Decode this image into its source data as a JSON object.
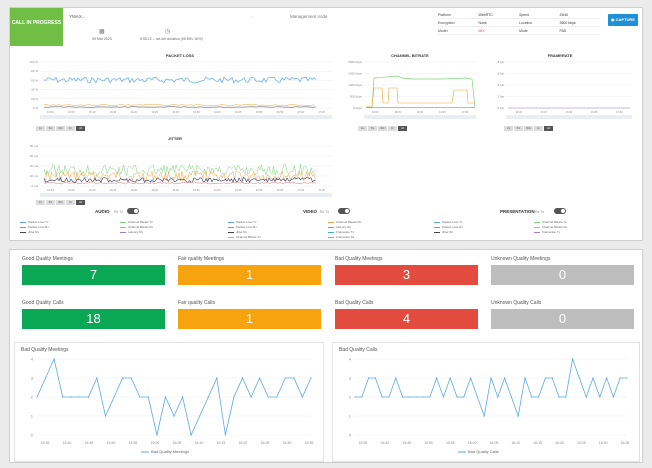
{
  "call": {
    "status": "CALL IN PROGRESS",
    "name": "YMAX...",
    "room_label": "Management node",
    "date": "05 Mar 2024",
    "duration_text": "5:55:22 – not set duration (05:59h, 30%)",
    "arrow_text": "→",
    "capture_label": "CAPTURE",
    "info": [
      {
        "k": "Platform",
        "v": "WebRTC",
        "k2": "Speed",
        "v2": "25/40"
      },
      {
        "k": "Encryption",
        "v": "None",
        "k2": "Location",
        "v2": "3500 kbps"
      },
      {
        "k": "Model",
        "v": "MIX",
        "k2": "Mode",
        "v2": "PAS"
      }
    ]
  },
  "charts": {
    "packet_loss": {
      "title": "PACKET LOSS",
      "yticks": [
        "100 %",
        "80 %",
        "60 %",
        "40 %",
        "20 %",
        "0 %"
      ],
      "xticks": [
        "16:00",
        "16:05",
        "16:10",
        "16:15",
        "16:20",
        "16:25",
        "16:30",
        "16:35",
        "16:40",
        "16:45",
        "16:50",
        "16:55",
        "17:00",
        "17:05"
      ]
    },
    "bitrate": {
      "title": "CHANNEL BITRATE",
      "yticks": [
        "2000 kbps",
        "1500 kbps",
        "1000 kbps",
        "500 kbps",
        "0 kbps"
      ],
      "xticks": [
        "16:00",
        "16:15",
        "16:30",
        "16:45",
        "17:00"
      ]
    },
    "framerate": {
      "title": "FRAMERATE",
      "yticks": [
        "8 fps",
        "6 fps",
        "4 fps",
        "2 fps",
        "0 fps"
      ],
      "xticks": [
        "16:00",
        "16:15",
        "16:30",
        "16:45",
        "17:00"
      ]
    },
    "jitter": {
      "title": "JITTER",
      "yticks": [
        "80 ms",
        "60 ms",
        "40 ms",
        "20 ms",
        "0 ms"
      ],
      "xticks": [
        "16:00",
        "16:05",
        "16:10",
        "16:15",
        "16:20",
        "16:25",
        "16:30",
        "16:35",
        "16:40",
        "16:45",
        "16:50",
        "16:55",
        "17:00",
        "17:05"
      ]
    },
    "ranges": [
      "1m",
      "5m",
      "30m",
      "1h",
      "All"
    ]
  },
  "sections": {
    "audio": "AUDIO",
    "video": "VIDEO",
    "presentation": "PRESENTATION",
    "small_tags": "Rx Tx"
  },
  "legend": {
    "audio": [
      "Packet Loss Tx",
      "Packet Loss Rx",
      "Jitter Rx",
      "Channel Bitrate Tx",
      "Channel Bitrate Rx",
      "Latency Rx"
    ],
    "video": [
      "Packet Loss Tx",
      "Packet Loss Rx",
      "Jitter Rx",
      "Channel Bitrate Tx",
      "Channel Bitrate Rx",
      "Latency Rx",
      "Framerate Tx",
      "Framerate Rx"
    ],
    "presentation": [
      "Packet Loss Tx",
      "Packet Loss Rx",
      "Jitter Rx",
      "Channel Bitrate Tx",
      "Channel Bitrate Rx",
      "Framerate Tx"
    ],
    "colors": [
      "#5aa9e6",
      "#e86d6d",
      "#444444",
      "#7dd37d",
      "#f3a33a",
      "#a07cd6",
      "#39b8a8",
      "#c9a227"
    ]
  },
  "stats": [
    {
      "label": "Good Quality Meetings",
      "value": "7",
      "color": "#0aa855"
    },
    {
      "label": "Fair quality Meetings",
      "value": "1",
      "color": "#f7a30e"
    },
    {
      "label": "Bad Quality Meetings",
      "value": "3",
      "color": "#e24b3d"
    },
    {
      "label": "Unknown Quality Meetings",
      "value": "0",
      "color": "#bdbdbd"
    },
    {
      "label": "Good Quality Calls",
      "value": "18",
      "color": "#0aa855"
    },
    {
      "label": "Fair quality Calls",
      "value": "1",
      "color": "#f7a30e"
    },
    {
      "label": "Bad Quality Calls",
      "value": "4",
      "color": "#e24b3d"
    },
    {
      "label": "Unknown Quality Calls",
      "value": "0",
      "color": "#bdbdbd"
    }
  ],
  "chart_data": [
    {
      "type": "line",
      "title": "Bad Quality Meetings",
      "yticks": [
        0,
        1,
        2,
        3,
        4
      ],
      "ylim": [
        0,
        4
      ],
      "xticks": [
        "15:35",
        "15:40",
        "15:45",
        "15:50",
        "15:55",
        "16:00",
        "16:05",
        "16:10",
        "16:15",
        "16:20",
        "16:25",
        "16:30",
        "16:35"
      ],
      "series": [
        {
          "name": "Bad Quality Meetings",
          "values": [
            2,
            3,
            4,
            2,
            2,
            2,
            2,
            3,
            1,
            2,
            3,
            3,
            2,
            2,
            0,
            2,
            1,
            2,
            0,
            1,
            2,
            3,
            0,
            2,
            3,
            2,
            3,
            2,
            2,
            3,
            3,
            2,
            3
          ]
        }
      ],
      "color": "#5aa9e6"
    },
    {
      "type": "line",
      "title": "Bad Quality Calls",
      "yticks": [
        0,
        1,
        2,
        3,
        4
      ],
      "ylim": [
        0,
        4
      ],
      "xticks": [
        "15:35",
        "15:40",
        "15:45",
        "15:50",
        "15:55",
        "16:00",
        "16:05",
        "16:10",
        "16:15",
        "16:20",
        "16:25",
        "16:30",
        "16:35"
      ],
      "series": [
        {
          "name": "Bad Quality Calls",
          "values": [
            2,
            2,
            3,
            3,
            2,
            2,
            3,
            2,
            2,
            2,
            2,
            2,
            3,
            2,
            3,
            2,
            2,
            3,
            2,
            1,
            3,
            2,
            3,
            2,
            1,
            3,
            2,
            2,
            3,
            3,
            2,
            2,
            4,
            3,
            2,
            3,
            2,
            3,
            2,
            3,
            3
          ]
        }
      ],
      "color": "#5aa9e6"
    }
  ]
}
